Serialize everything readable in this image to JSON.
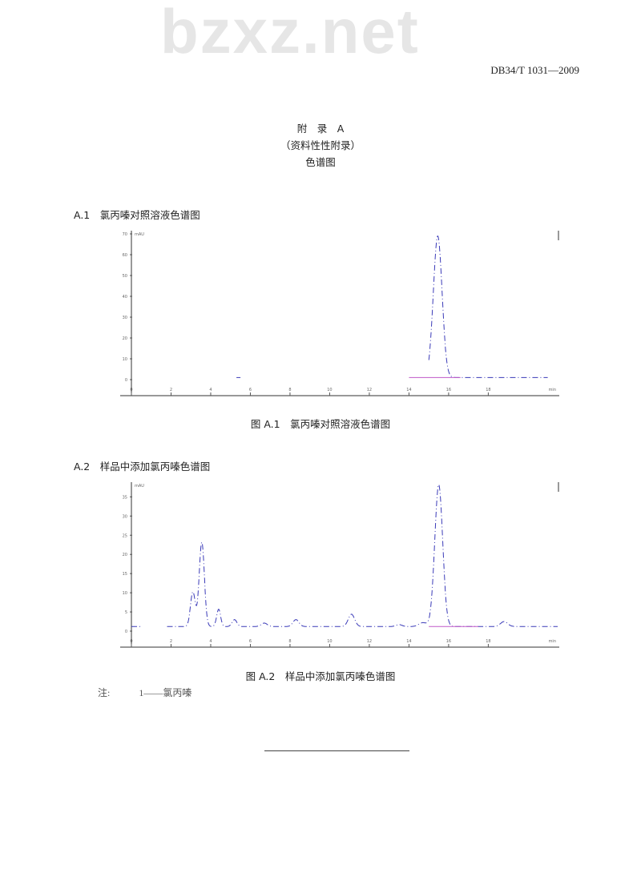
{
  "header": {
    "standard_number": "DB34/T 1031—2009"
  },
  "watermark": "bzxz.net",
  "appendix": {
    "title": "附　录　A",
    "subtitle": "（资料性性附录）",
    "heading": "色谱图"
  },
  "sections": [
    {
      "label": "A.1　氯丙嗪对照溶液色谱图",
      "caption": "图 A.1　氯丙嗪对照溶液色谱图"
    },
    {
      "label": "A.2　样品中添加氯丙嗪色谱图",
      "caption": "图 A.2　样品中添加氯丙嗪色谱图"
    }
  ],
  "note": {
    "label": "注:",
    "text": "1——氯丙嗪"
  },
  "chart_data": [
    {
      "type": "line",
      "title": "",
      "xlabel": "min",
      "ylabel": "mAU",
      "xlim": [
        0,
        21.5
      ],
      "ylim": [
        0,
        70
      ],
      "xticks": [
        0,
        2,
        4,
        6,
        8,
        10,
        12,
        14,
        16,
        18
      ],
      "yticks": [
        0,
        10,
        20,
        30,
        40,
        50,
        60,
        70
      ],
      "baseline": 1.0,
      "trace_ranges": [
        [
          5.3,
          5.5
        ],
        [
          15,
          21
        ]
      ],
      "peaks": [
        {
          "rt": 15.45,
          "height": 68,
          "width": 0.22
        }
      ],
      "integration_baseline": [
        14.0,
        16.6
      ],
      "colors": {
        "trace": "#3a3ab8",
        "baseline": "#c05ac8"
      }
    },
    {
      "type": "line",
      "title": "",
      "xlabel": "min",
      "ylabel": "mAU",
      "xlim": [
        0,
        21.5
      ],
      "ylim": [
        0,
        38
      ],
      "xticks": [
        0,
        2,
        4,
        6,
        8,
        10,
        12,
        14,
        16,
        18
      ],
      "yticks": [
        0,
        5,
        10,
        15,
        20,
        25,
        30,
        35
      ],
      "baseline": 1.2,
      "trace_ranges": [
        [
          0,
          0.5
        ],
        [
          1.8,
          21.5
        ]
      ],
      "peaks": [
        {
          "rt": 3.1,
          "height": 9,
          "width": 0.12
        },
        {
          "rt": 3.55,
          "height": 22,
          "width": 0.13
        },
        {
          "rt": 4.4,
          "height": 4.5,
          "width": 0.1
        },
        {
          "rt": 5.2,
          "height": 1.8,
          "width": 0.12
        },
        {
          "rt": 6.7,
          "height": 0.9,
          "width": 0.15
        },
        {
          "rt": 8.3,
          "height": 1.8,
          "width": 0.15
        },
        {
          "rt": 11.1,
          "height": 3.2,
          "width": 0.16
        },
        {
          "rt": 13.5,
          "height": 0.5,
          "width": 0.15
        },
        {
          "rt": 14.7,
          "height": 1.0,
          "width": 0.2
        },
        {
          "rt": 15.5,
          "height": 37,
          "width": 0.2
        },
        {
          "rt": 18.8,
          "height": 1.3,
          "width": 0.18
        }
      ],
      "integration_baseline": [
        15.0,
        17.5
      ],
      "colors": {
        "trace": "#3a3ab8",
        "baseline": "#c05ac8"
      }
    }
  ]
}
